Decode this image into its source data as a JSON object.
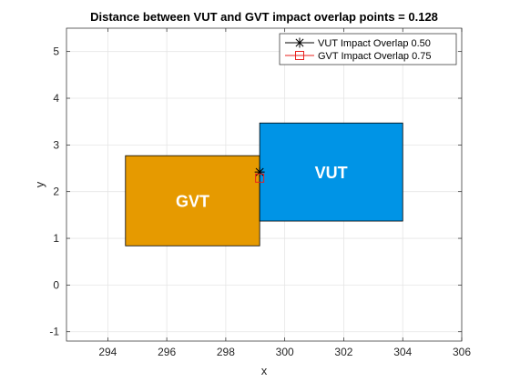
{
  "chart_data": {
    "type": "scatter",
    "title": "Distance between VUT and GVT impact overlap points = 0.128",
    "xlabel": "x",
    "ylabel": "y",
    "xlim": [
      292.6,
      306
    ],
    "ylim": [
      -1.2,
      5.5
    ],
    "xticks": [
      294,
      296,
      298,
      300,
      302,
      304,
      306
    ],
    "yticks": [
      -1,
      0,
      1,
      2,
      3,
      4,
      5
    ],
    "grid": true,
    "legend_position": "top-right",
    "rectangles": [
      {
        "label": "GVT",
        "x": [
          294.6,
          299.15
        ],
        "y": [
          0.84,
          2.77
        ],
        "color": "#E69A00"
      },
      {
        "label": "VUT",
        "x": [
          299.15,
          304.0
        ],
        "y": [
          1.37,
          3.47
        ],
        "color": "#0094E6"
      }
    ],
    "series": [
      {
        "name": "VUT Impact Overlap 0.50",
        "marker": "asterisk",
        "color": "#000000",
        "x": [
          299.15
        ],
        "y": [
          2.42
        ]
      },
      {
        "name": "GVT Impact Overlap 0.75",
        "marker": "square",
        "color": "#E8211E",
        "x": [
          299.15
        ],
        "y": [
          2.29
        ]
      }
    ]
  }
}
